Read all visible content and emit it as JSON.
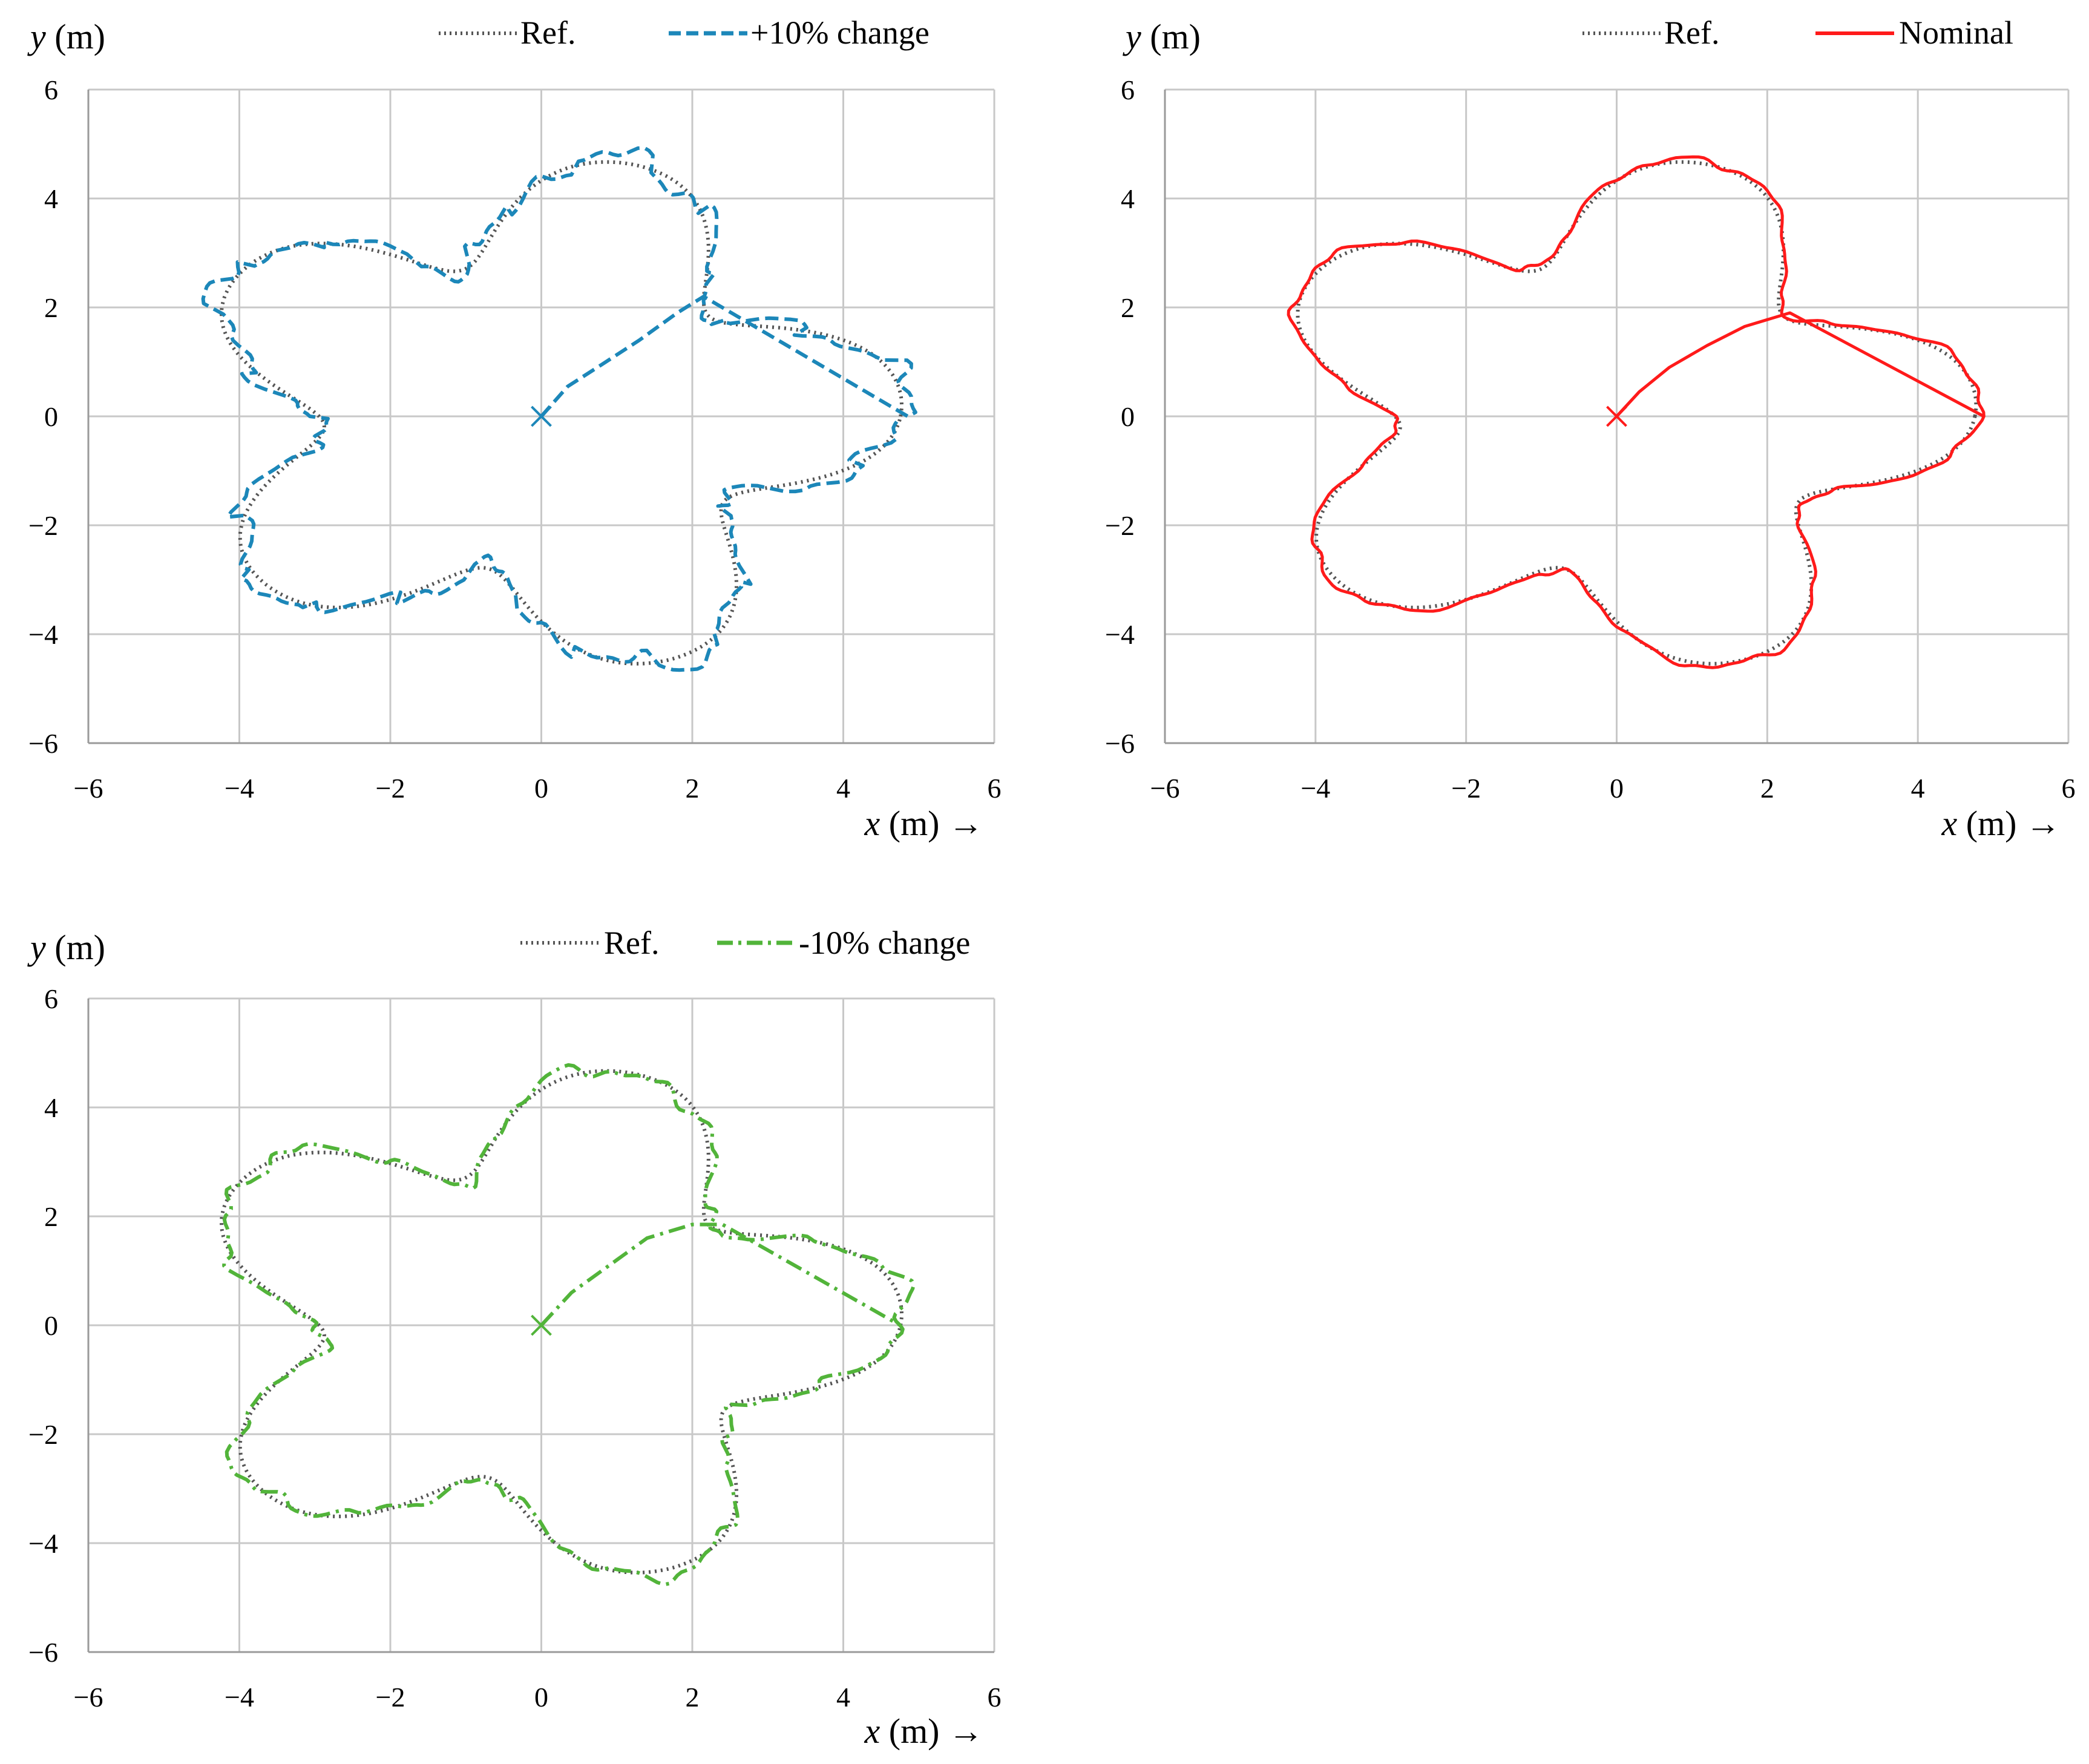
{
  "chart_data": [
    {
      "type": "line",
      "title": "",
      "xlabel": "x (m) →",
      "ylabel": "y (m)",
      "xlim": [
        -6,
        6
      ],
      "ylim": [
        -6,
        6
      ],
      "xticks": [
        "−6",
        "−4",
        "−2",
        "0",
        "2",
        "4",
        "6"
      ],
      "yticks": [
        "6",
        "4",
        "2",
        "0",
        "−2",
        "−4",
        "−6"
      ],
      "grid": true,
      "legend_position": "top-right",
      "start_marker": [
        0,
        0
      ],
      "series": [
        {
          "name": "Ref.",
          "style": "dotted",
          "color": "#555555",
          "profile": "reference"
        },
        {
          "name": "+10% change",
          "style": "dashed",
          "color": "#1c87b9",
          "profile": "plus10",
          "approach": [
            [
              0,
              0
            ],
            [
              0.35,
              0.55
            ],
            [
              0.8,
              0.95
            ],
            [
              1.3,
              1.4
            ],
            [
              1.8,
              1.9
            ],
            [
              2.15,
              2.2
            ]
          ]
        }
      ]
    },
    {
      "type": "line",
      "title": "",
      "xlabel": "x (m) →",
      "ylabel": "y (m)",
      "xlim": [
        -6,
        6
      ],
      "ylim": [
        -6,
        6
      ],
      "xticks": [
        "−6",
        "−4",
        "−2",
        "0",
        "2",
        "4",
        "6"
      ],
      "yticks": [
        "6",
        "4",
        "2",
        "0",
        "−2",
        "−4",
        "−6"
      ],
      "grid": true,
      "legend_position": "top-right",
      "start_marker": [
        0,
        0
      ],
      "series": [
        {
          "name": "Ref.",
          "style": "dotted",
          "color": "#555555",
          "profile": "reference"
        },
        {
          "name": "Nominal",
          "style": "solid",
          "color": "#ff1a1a",
          "profile": "nominal",
          "approach": [
            [
              0,
              0
            ],
            [
              0.3,
              0.45
            ],
            [
              0.7,
              0.9
            ],
            [
              1.2,
              1.3
            ],
            [
              1.7,
              1.65
            ],
            [
              2.3,
              1.9
            ]
          ]
        }
      ]
    },
    {
      "type": "line",
      "title": "",
      "xlabel": "x (m) →",
      "ylabel": "y (m)",
      "xlim": [
        -6,
        6
      ],
      "ylim": [
        -6,
        6
      ],
      "xticks": [
        "−6",
        "−4",
        "−2",
        "0",
        "2",
        "4",
        "6"
      ],
      "yticks": [
        "6",
        "4",
        "2",
        "0",
        "−2",
        "−4",
        "−6"
      ],
      "grid": true,
      "legend_position": "top-right",
      "start_marker": [
        0,
        0
      ],
      "series": [
        {
          "name": "Ref.",
          "style": "dotted",
          "color": "#555555",
          "profile": "reference"
        },
        {
          "name": "-10% change",
          "style": "dashdot",
          "color": "#52b43a",
          "profile": "minus10",
          "approach": [
            [
              0,
              0
            ],
            [
              0.4,
              0.6
            ],
            [
              0.9,
              1.1
            ],
            [
              1.4,
              1.6
            ],
            [
              2.0,
              1.85
            ],
            [
              2.4,
              1.85
            ]
          ]
        }
      ]
    }
  ]
}
